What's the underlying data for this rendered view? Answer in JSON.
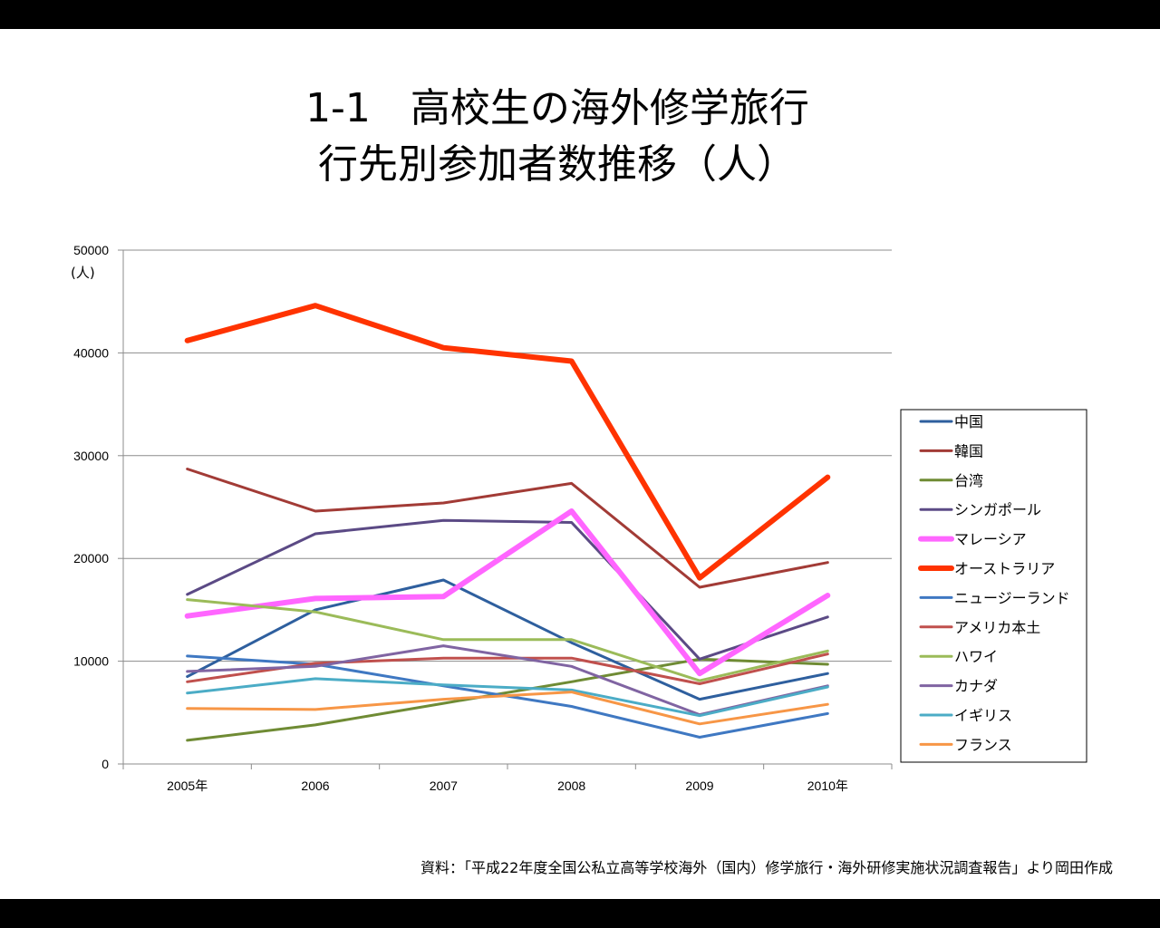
{
  "title_line1": "1-1　高校生の海外修学旅行",
  "title_line2": "行先別参加者数推移（人）",
  "source": "資料：「平成22年度全国公私立高等学校海外（国内）修学旅行・海外研修実施状況調査報告」より岡田作成",
  "chart_data": {
    "type": "line",
    "title": "1-1　高校生の海外修学旅行 行先別参加者数推移（人）",
    "xlabel": "",
    "ylabel": "(人)",
    "categories": [
      "2005年",
      "2006",
      "2007",
      "2008",
      "2009",
      "2010年"
    ],
    "ylim": [
      0,
      50000
    ],
    "yticks": [
      "0",
      "10000",
      "20000",
      "30000",
      "40000",
      "50000"
    ],
    "grid": true,
    "legend_position": "right",
    "series": [
      {
        "name": "中国",
        "color": "#2e5f9e",
        "width": 3,
        "values": [
          8500,
          15000,
          17900,
          11800,
          6300,
          8800
        ]
      },
      {
        "name": "韓国",
        "color": "#a23b36",
        "width": 3,
        "values": [
          28700,
          24600,
          25400,
          27300,
          17200,
          19600
        ]
      },
      {
        "name": "台湾",
        "color": "#6f8b34",
        "width": 3,
        "values": [
          2300,
          3800,
          5900,
          8000,
          10200,
          9700
        ]
      },
      {
        "name": "シンガポール",
        "color": "#5b4a85",
        "width": 3,
        "values": [
          16500,
          22400,
          23700,
          23500,
          10200,
          14300
        ]
      },
      {
        "name": "マレーシア",
        "color": "#ff66ff",
        "width": 6,
        "values": [
          14400,
          16100,
          16300,
          24600,
          8800,
          16400
        ]
      },
      {
        "name": "オーストラリア",
        "color": "#ff3300",
        "width": 6,
        "values": [
          41200,
          44600,
          40500,
          39200,
          18100,
          27900
        ]
      },
      {
        "name": "ニュージーランド",
        "color": "#3f78c2",
        "width": 3,
        "values": [
          10500,
          9700,
          7600,
          5600,
          2600,
          4900
        ]
      },
      {
        "name": "アメリカ本土",
        "color": "#c0504d",
        "width": 3,
        "values": [
          8000,
          9800,
          10300,
          10300,
          7800,
          10700
        ]
      },
      {
        "name": "ハワイ",
        "color": "#9bbb59",
        "width": 3,
        "values": [
          16000,
          14800,
          12100,
          12100,
          8100,
          11000
        ]
      },
      {
        "name": "カナダ",
        "color": "#8064a2",
        "width": 3,
        "values": [
          9000,
          9500,
          11500,
          9500,
          4800,
          7600
        ]
      },
      {
        "name": "イギリス",
        "color": "#4bacc6",
        "width": 3,
        "values": [
          6900,
          8300,
          7700,
          7200,
          4700,
          7500
        ]
      },
      {
        "name": "フランス",
        "color": "#f79646",
        "width": 3,
        "values": [
          5400,
          5300,
          6300,
          7000,
          3900,
          5800
        ]
      }
    ]
  }
}
